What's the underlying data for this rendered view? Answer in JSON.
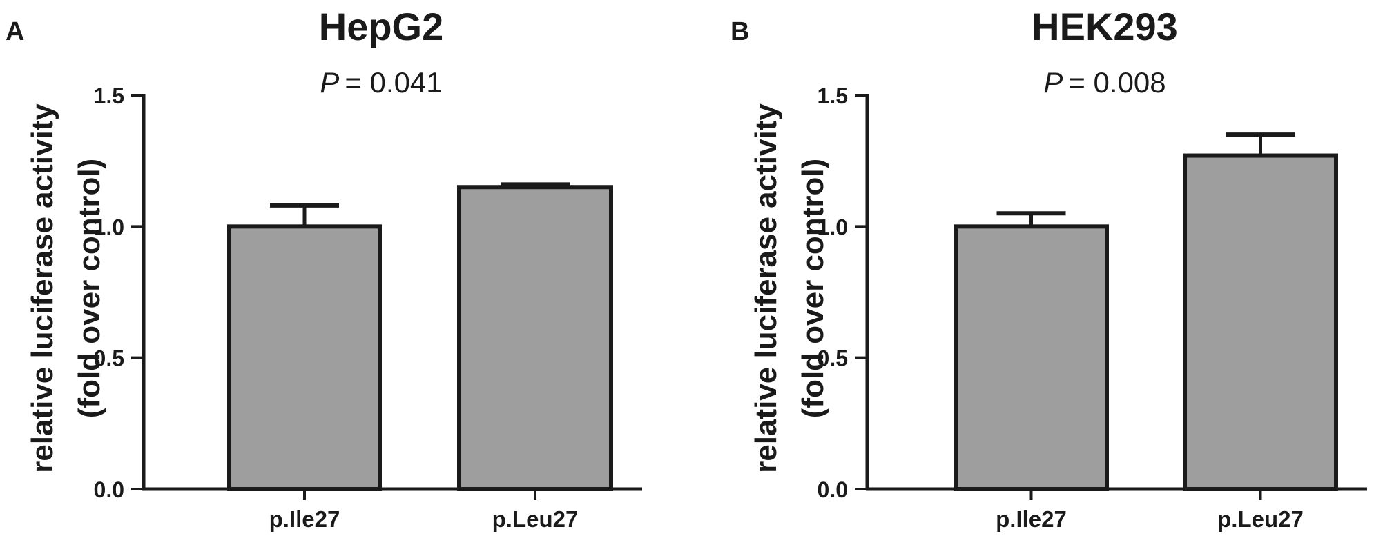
{
  "figure": {
    "panels": [
      {
        "letter": "A",
        "title": "HepG2",
        "p_label": "P",
        "p_value": "= 0.041"
      },
      {
        "letter": "B",
        "title": "HEK293",
        "p_label": "P",
        "p_value": "= 0.008"
      }
    ]
  },
  "colors": {
    "bar_fill": "#9e9e9e",
    "stroke": "#1a1a1a",
    "background": "#ffffff"
  },
  "chart_data": [
    {
      "type": "bar",
      "title": "HepG2",
      "annotation": "P = 0.041",
      "categories": [
        "p.Ile27",
        "p.Leu27"
      ],
      "values": [
        1.0,
        1.15
      ],
      "error_upper": [
        0.08,
        0.01
      ],
      "ylabel": [
        "relative luciferase activity",
        "(fold over control)"
      ],
      "xlabel": "",
      "ylim": [
        0,
        1.5
      ],
      "yticks": [
        0.0,
        0.5,
        1.0,
        1.5
      ],
      "ytick_labels": [
        "0.0",
        "0.5",
        "1.0",
        "1.5"
      ],
      "grid": false
    },
    {
      "type": "bar",
      "title": "HEK293",
      "annotation": "P = 0.008",
      "categories": [
        "p.Ile27",
        "p.Leu27"
      ],
      "values": [
        1.0,
        1.27
      ],
      "error_upper": [
        0.05,
        0.08
      ],
      "ylabel": [
        "relative luciferase activity",
        "(fold over control)"
      ],
      "xlabel": "",
      "ylim": [
        0,
        1.5
      ],
      "yticks": [
        0.0,
        0.5,
        1.0,
        1.5
      ],
      "ytick_labels": [
        "0.0",
        "0.5",
        "1.0",
        "1.5"
      ],
      "grid": false
    }
  ]
}
